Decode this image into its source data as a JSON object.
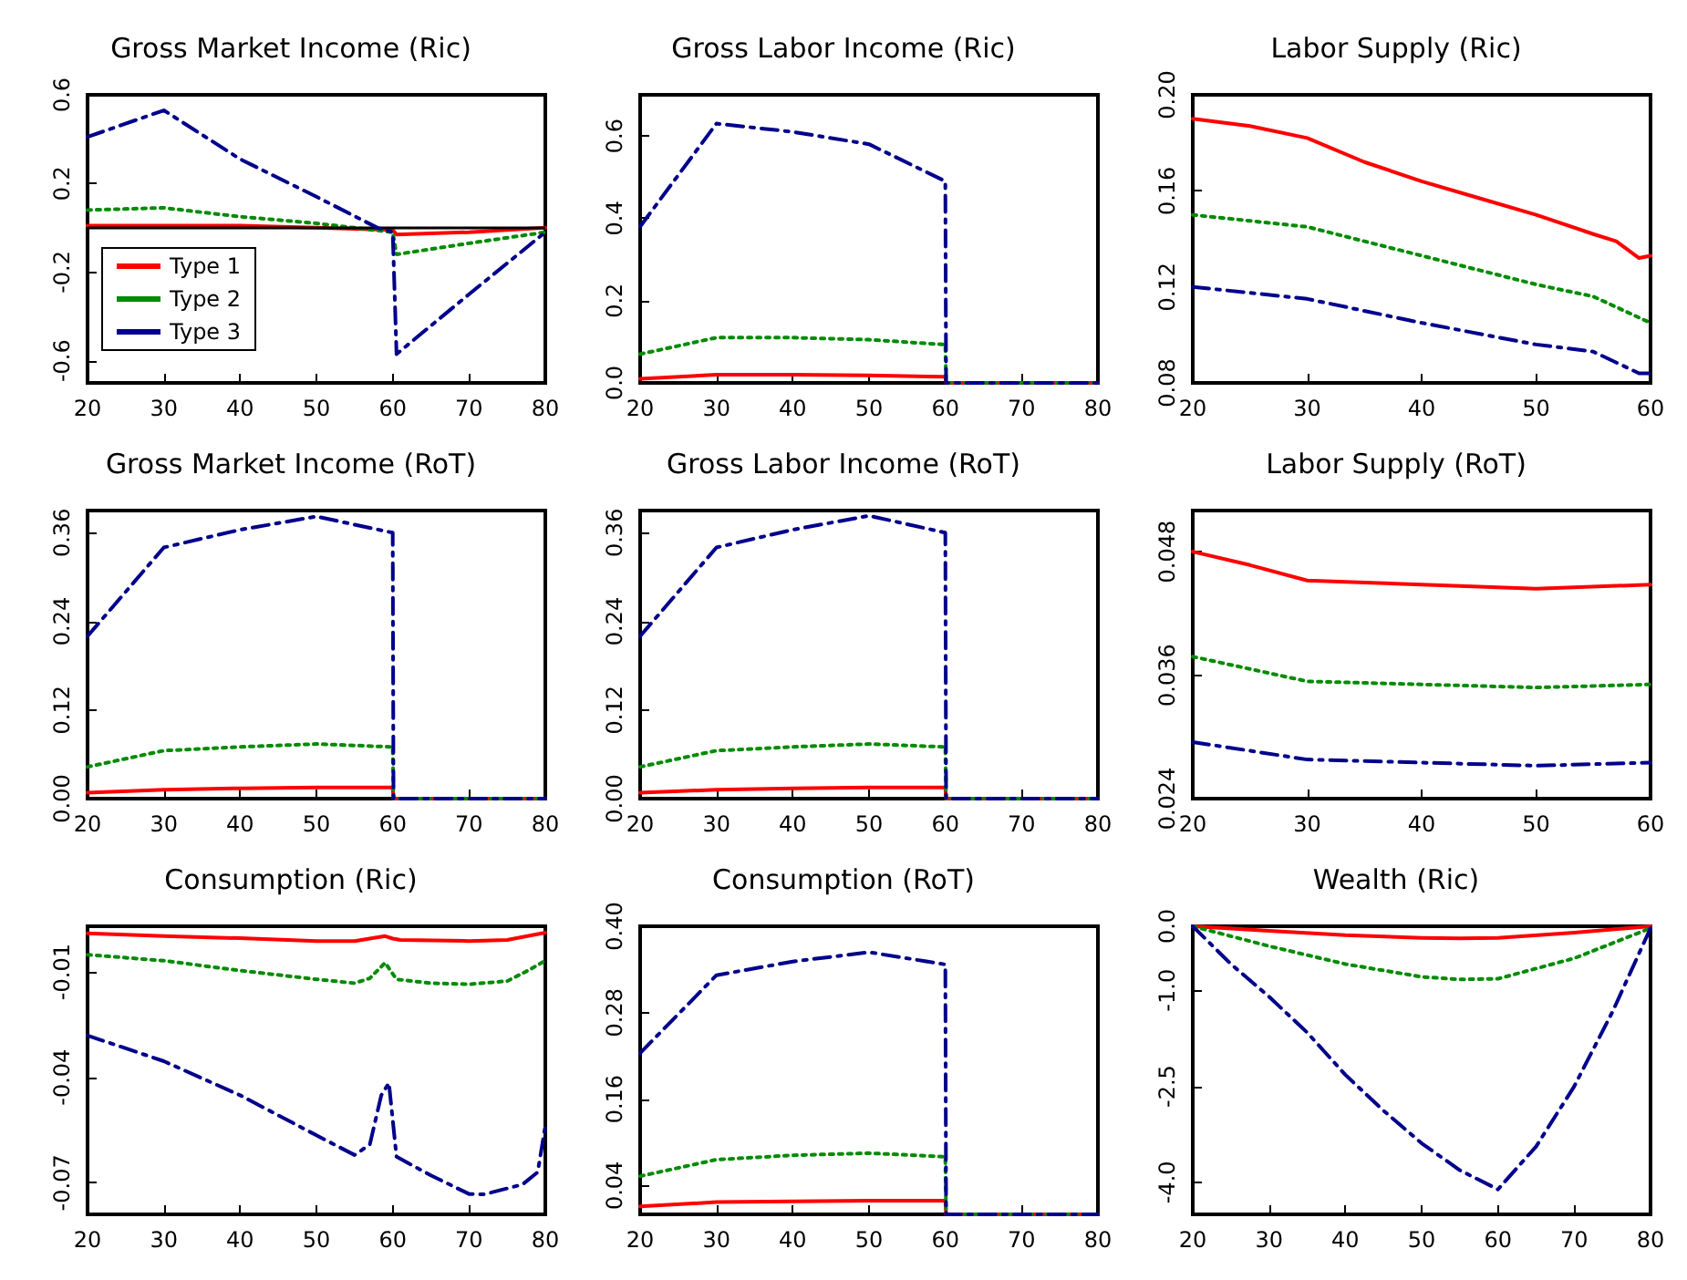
{
  "chart_data": [
    {
      "type": "line",
      "title": "Gross Market Income (Ric)",
      "xlim": [
        20,
        80
      ],
      "xticks": [
        20,
        30,
        40,
        50,
        60,
        70,
        80
      ],
      "ylim": [
        -0.7,
        0.6
      ],
      "yticks": [
        -0.6,
        -0.2,
        0.2,
        0.6
      ],
      "legend": "bottom left",
      "ref_lines": [
        {
          "axis": "y",
          "value": 0,
          "color": "#000000"
        }
      ],
      "series": [
        {
          "name": "Type 1",
          "color": "#ff0000",
          "line_style": "solid",
          "x": [
            20,
            30,
            40,
            50,
            60,
            60.5,
            70,
            80
          ],
          "values": [
            0.01,
            0.01,
            0.01,
            0,
            -0.01,
            -0.03,
            -0.02,
            0
          ]
        },
        {
          "name": "Type 2",
          "color": "#008b00",
          "line_style": "dotted",
          "x": [
            20,
            30,
            40,
            50,
            60,
            60.5,
            70,
            80
          ],
          "values": [
            0.08,
            0.09,
            0.05,
            0.02,
            -0.02,
            -0.12,
            -0.07,
            -0.02
          ]
        },
        {
          "name": "Type 3",
          "color": "#00008b",
          "line_style": "dashed",
          "x": [
            20,
            30,
            40,
            50,
            58,
            60,
            60.5,
            70,
            80
          ],
          "values": [
            0.41,
            0.53,
            0.31,
            0.14,
            0,
            -0.02,
            -0.57,
            -0.3,
            -0.02
          ]
        }
      ]
    },
    {
      "type": "line",
      "title": "Gross Labor Income (Ric)",
      "xlim": [
        20,
        80
      ],
      "xticks": [
        20,
        30,
        40,
        50,
        60,
        70,
        80
      ],
      "ylim": [
        0,
        0.7
      ],
      "yticks": [
        {
          "value": 0,
          "label": "0.0"
        },
        0.2,
        0.4,
        0.6
      ],
      "series": [
        {
          "color": "#ff0000",
          "line_style": "solid",
          "x": [
            20,
            30,
            40,
            50,
            60,
            60.1,
            80
          ],
          "values": [
            0.01,
            0.02,
            0.02,
            0.018,
            0.015,
            0,
            0
          ]
        },
        {
          "color": "#008b00",
          "line_style": "dotted",
          "x": [
            20,
            30,
            40,
            50,
            60,
            60.1,
            80
          ],
          "values": [
            0.07,
            0.11,
            0.11,
            0.105,
            0.093,
            0,
            0
          ]
        },
        {
          "color": "#00008b",
          "line_style": "dashed",
          "x": [
            20,
            30,
            40,
            50,
            60,
            60.1,
            80
          ],
          "values": [
            0.38,
            0.63,
            0.61,
            0.58,
            0.49,
            0,
            0
          ]
        }
      ]
    },
    {
      "type": "line",
      "title": "Labor Supply (Ric)",
      "xlim": [
        20,
        60
      ],
      "xticks": [
        20,
        30,
        40,
        50,
        60
      ],
      "ylim": [
        0.08,
        0.2
      ],
      "yticks": [
        0.08,
        0.12,
        0.16,
        {
          "value": 0.2,
          "label": "0.20"
        }
      ],
      "series": [
        {
          "color": "#ff0000",
          "line_style": "solid",
          "x": [
            20,
            25,
            30,
            35,
            40,
            45,
            50,
            55,
            57,
            59,
            60
          ],
          "values": [
            0.19,
            0.187,
            0.182,
            0.172,
            0.164,
            0.157,
            0.15,
            0.142,
            0.139,
            0.132,
            0.133
          ]
        },
        {
          "color": "#008b00",
          "line_style": "dotted",
          "x": [
            20,
            30,
            40,
            50,
            55,
            60
          ],
          "values": [
            0.15,
            0.145,
            0.133,
            0.121,
            0.116,
            0.105
          ]
        },
        {
          "color": "#00008b",
          "line_style": "dashed",
          "x": [
            20,
            30,
            40,
            50,
            55,
            59,
            60
          ],
          "values": [
            0.12,
            0.115,
            0.105,
            0.096,
            0.093,
            0.084,
            0.084
          ]
        }
      ]
    },
    {
      "type": "line",
      "title": "Gross Market Income (RoT)",
      "xlim": [
        20,
        80
      ],
      "xticks": [
        20,
        30,
        40,
        50,
        60,
        70,
        80
      ],
      "ylim": [
        0,
        0.39
      ],
      "yticks": [
        {
          "value": 0,
          "label": "0.00"
        },
        0.12,
        0.24,
        0.36
      ],
      "series": [
        {
          "color": "#ff0000",
          "line_style": "solid",
          "x": [
            20,
            30,
            40,
            50,
            60,
            60.1,
            80
          ],
          "values": [
            0.008,
            0.012,
            0.014,
            0.015,
            0.015,
            0,
            0
          ]
        },
        {
          "color": "#008b00",
          "line_style": "dotted",
          "x": [
            20,
            30,
            40,
            50,
            60,
            60.1,
            80
          ],
          "values": [
            0.043,
            0.065,
            0.07,
            0.074,
            0.07,
            0,
            0
          ]
        },
        {
          "color": "#00008b",
          "line_style": "dashed",
          "x": [
            20,
            30,
            40,
            50,
            60,
            60.1,
            80
          ],
          "values": [
            0.22,
            0.34,
            0.364,
            0.382,
            0.36,
            0,
            0
          ]
        }
      ]
    },
    {
      "type": "line",
      "title": "Gross Labor Income (RoT)",
      "xlim": [
        20,
        80
      ],
      "xticks": [
        20,
        30,
        40,
        50,
        60,
        70,
        80
      ],
      "ylim": [
        0,
        0.39
      ],
      "yticks": [
        {
          "value": 0,
          "label": "0.00"
        },
        0.12,
        0.24,
        0.36
      ],
      "series": [
        {
          "color": "#ff0000",
          "line_style": "solid",
          "x": [
            20,
            30,
            40,
            50,
            60,
            60.1,
            80
          ],
          "values": [
            0.008,
            0.012,
            0.014,
            0.015,
            0.015,
            0,
            0
          ]
        },
        {
          "color": "#008b00",
          "line_style": "dotted",
          "x": [
            20,
            30,
            40,
            50,
            60,
            60.1,
            80
          ],
          "values": [
            0.043,
            0.065,
            0.07,
            0.074,
            0.07,
            0,
            0
          ]
        },
        {
          "color": "#00008b",
          "line_style": "dashed",
          "x": [
            20,
            30,
            40,
            50,
            60,
            60.1,
            80
          ],
          "values": [
            0.22,
            0.34,
            0.364,
            0.383,
            0.36,
            0,
            0
          ]
        }
      ]
    },
    {
      "type": "line",
      "title": "Labor Supply (RoT)",
      "xlim": [
        20,
        60
      ],
      "xticks": [
        20,
        30,
        40,
        50,
        60
      ],
      "ylim": [
        0.024,
        0.052
      ],
      "yticks": [
        0.024,
        0.036,
        0.048
      ],
      "series": [
        {
          "color": "#ff0000",
          "line_style": "solid",
          "x": [
            20,
            25,
            30,
            40,
            50,
            60
          ],
          "values": [
            0.048,
            0.0467,
            0.0452,
            0.0448,
            0.0444,
            0.0448
          ]
        },
        {
          "color": "#008b00",
          "line_style": "dotted",
          "x": [
            20,
            30,
            40,
            50,
            60
          ],
          "values": [
            0.0378,
            0.0354,
            0.0351,
            0.0348,
            0.0351
          ]
        },
        {
          "color": "#00008b",
          "line_style": "dashed",
          "x": [
            20,
            30,
            40,
            50,
            60
          ],
          "values": [
            0.0295,
            0.0278,
            0.0275,
            0.0272,
            0.0275
          ]
        }
      ]
    },
    {
      "type": "line",
      "title": "Consumption (Ric)",
      "xlim": [
        20,
        80
      ],
      "xticks": [
        20,
        30,
        40,
        50,
        60,
        70,
        80
      ],
      "ylim": [
        -0.079,
        0.003
      ],
      "yticks": [
        -0.07,
        -0.04,
        -0.01
      ],
      "series": [
        {
          "color": "#ff0000",
          "line_style": "solid",
          "x": [
            20,
            30,
            40,
            50,
            55,
            59,
            60,
            61,
            70,
            75,
            80
          ],
          "values": [
            0.001,
            0.0002,
            -0.0004,
            -0.0012,
            -0.0012,
            0.0002,
            -0.0005,
            -0.0009,
            -0.0012,
            -0.0009,
            0.0012
          ]
        },
        {
          "color": "#008b00",
          "line_style": "dotted",
          "x": [
            20,
            30,
            40,
            50,
            55,
            57,
            59,
            60.5,
            65,
            70,
            75,
            78,
            80
          ],
          "values": [
            -0.0051,
            -0.0068,
            -0.0096,
            -0.0121,
            -0.0132,
            -0.0118,
            -0.0074,
            -0.0121,
            -0.0132,
            -0.0135,
            -0.0126,
            -0.0093,
            -0.0068
          ]
        },
        {
          "color": "#00008b",
          "line_style": "dashed",
          "x": [
            20,
            30,
            40,
            50,
            55,
            57,
            58.5,
            59.5,
            60.5,
            65,
            70,
            72,
            77,
            79,
            80
          ],
          "values": [
            -0.0281,
            -0.0354,
            -0.0451,
            -0.0565,
            -0.0621,
            -0.0591,
            -0.0451,
            -0.0416,
            -0.0626,
            -0.0679,
            -0.0732,
            -0.0733,
            -0.0705,
            -0.067,
            -0.0539
          ]
        }
      ]
    },
    {
      "type": "line",
      "title": "Consumption (RoT)",
      "xlim": [
        20,
        80
      ],
      "xticks": [
        20,
        30,
        40,
        50,
        60,
        70,
        80
      ],
      "ylim": [
        0,
        0.4
      ],
      "yticks": [
        0.04,
        0.16,
        0.28,
        {
          "value": 0.4,
          "label": "0.40"
        }
      ],
      "series": [
        {
          "color": "#ff0000",
          "line_style": "solid",
          "x": [
            20,
            30,
            40,
            50,
            60,
            60.1,
            80
          ],
          "values": [
            0.011,
            0.017,
            0.018,
            0.019,
            0.019,
            0,
            0
          ]
        },
        {
          "color": "#008b00",
          "line_style": "dotted",
          "x": [
            20,
            30,
            40,
            50,
            60,
            60.1,
            80
          ],
          "values": [
            0.053,
            0.076,
            0.082,
            0.085,
            0.08,
            0,
            0
          ]
        },
        {
          "color": "#00008b",
          "line_style": "dashed",
          "x": [
            20,
            30,
            40,
            50,
            60,
            60.1,
            80
          ],
          "values": [
            0.224,
            0.332,
            0.351,
            0.364,
            0.347,
            0,
            0
          ]
        }
      ]
    },
    {
      "type": "line",
      "title": "Wealth (Ric)",
      "xlim": [
        20,
        80
      ],
      "xticks": [
        20,
        30,
        40,
        50,
        60,
        70,
        80
      ],
      "ylim": [
        -4.5,
        0
      ],
      "yticks": [
        {
          "value": -4,
          "label": "-4.0"
        },
        -2.5,
        {
          "value": -1,
          "label": "-1.0"
        },
        {
          "value": 0,
          "label": "0.0"
        }
      ],
      "series": [
        {
          "color": "#ff0000",
          "line_style": "solid",
          "x": [
            20,
            30,
            40,
            50,
            55,
            60,
            70,
            80
          ],
          "values": [
            0,
            -0.07,
            -0.14,
            -0.18,
            -0.19,
            -0.18,
            -0.1,
            0
          ]
        },
        {
          "color": "#008b00",
          "line_style": "dotted",
          "x": [
            20,
            30,
            40,
            50,
            55,
            60,
            70,
            80
          ],
          "values": [
            0,
            -0.31,
            -0.59,
            -0.79,
            -0.83,
            -0.82,
            -0.5,
            -0.03
          ]
        },
        {
          "color": "#00008b",
          "line_style": "dashed",
          "x": [
            20,
            25,
            30,
            35,
            40,
            45,
            50,
            55,
            60,
            65,
            70,
            75,
            80
          ],
          "values": [
            0,
            -0.59,
            -1.1,
            -1.66,
            -2.32,
            -2.88,
            -3.39,
            -3.81,
            -4.11,
            -3.44,
            -2.5,
            -1.34,
            -0.03
          ]
        }
      ]
    }
  ]
}
